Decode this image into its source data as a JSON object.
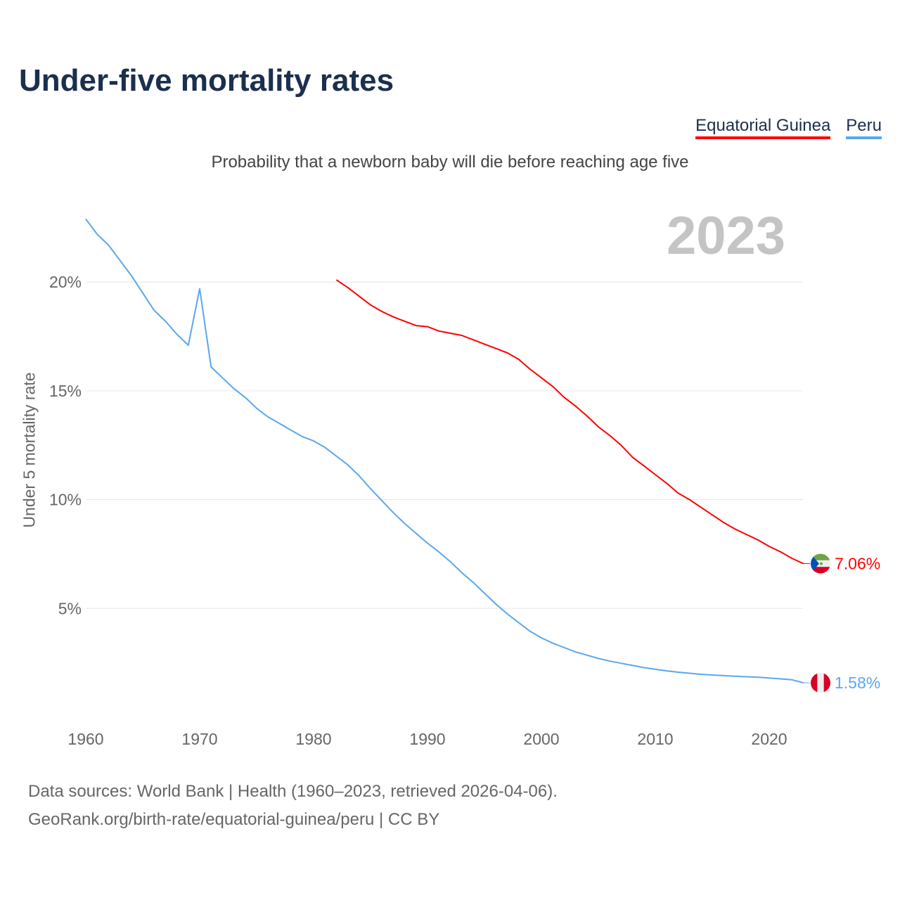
{
  "title": "Under-five mortality rates",
  "subtitle": "Probability that a newborn baby will die before reaching age five",
  "current_year": "2023",
  "footer": {
    "line1": "Data sources: World Bank | Health (1960–2023, retrieved 2026-04-06).",
    "line2": "GeoRank.org/birth-rate/equatorial-guinea/peru | CC BY"
  },
  "chart_data": {
    "type": "line",
    "title": "Under-five mortality rates",
    "xlabel": "",
    "ylabel": "Under 5 mortality rate",
    "xlim": [
      1960,
      2023
    ],
    "ylim": [
      0,
      23
    ],
    "x_ticks": [
      1960,
      1970,
      1980,
      1990,
      2000,
      2010,
      2020
    ],
    "x_tick_labels": [
      "1960",
      "1970",
      "1980",
      "1990",
      "2000",
      "2010",
      "2020"
    ],
    "y_ticks": [
      5,
      10,
      15,
      20
    ],
    "y_tick_labels": [
      "5%",
      "10%",
      "15%",
      "20%"
    ],
    "grid": "horizontal",
    "legend_placement": "top-right",
    "series": [
      {
        "name": "Equatorial Guinea",
        "color": "#ff0000",
        "end_label": "7.06%",
        "start_year": 1982,
        "values": [
          20.1,
          19.75,
          19.35,
          18.95,
          18.65,
          18.4,
          18.2,
          18.0,
          17.95,
          17.75,
          17.65,
          17.55,
          17.35,
          17.15,
          16.95,
          16.75,
          16.45,
          16.0,
          15.6,
          15.2,
          14.7,
          14.3,
          13.85,
          13.35,
          12.95,
          12.5,
          11.95,
          11.55,
          11.15,
          10.75,
          10.3,
          10.0,
          9.65,
          9.3,
          8.95,
          8.65,
          8.4,
          8.15,
          7.85,
          7.6,
          7.3,
          7.06
        ]
      },
      {
        "name": "Peru",
        "color": "#5aa7ee",
        "end_label": "1.58%",
        "start_year": 1960,
        "values": [
          22.9,
          22.2,
          21.7,
          21.0,
          20.3,
          19.5,
          18.7,
          18.2,
          17.6,
          17.1,
          19.7,
          16.1,
          15.6,
          15.1,
          14.7,
          14.2,
          13.8,
          13.5,
          13.2,
          12.9,
          12.7,
          12.4,
          12.0,
          11.6,
          11.1,
          10.5,
          9.95,
          9.4,
          8.9,
          8.45,
          8.0,
          7.6,
          7.15,
          6.65,
          6.2,
          5.7,
          5.2,
          4.75,
          4.35,
          3.95,
          3.65,
          3.4,
          3.2,
          3.0,
          2.85,
          2.7,
          2.58,
          2.48,
          2.38,
          2.28,
          2.2,
          2.13,
          2.07,
          2.02,
          1.97,
          1.94,
          1.91,
          1.88,
          1.86,
          1.84,
          1.8,
          1.76,
          1.72,
          1.58
        ]
      }
    ]
  }
}
